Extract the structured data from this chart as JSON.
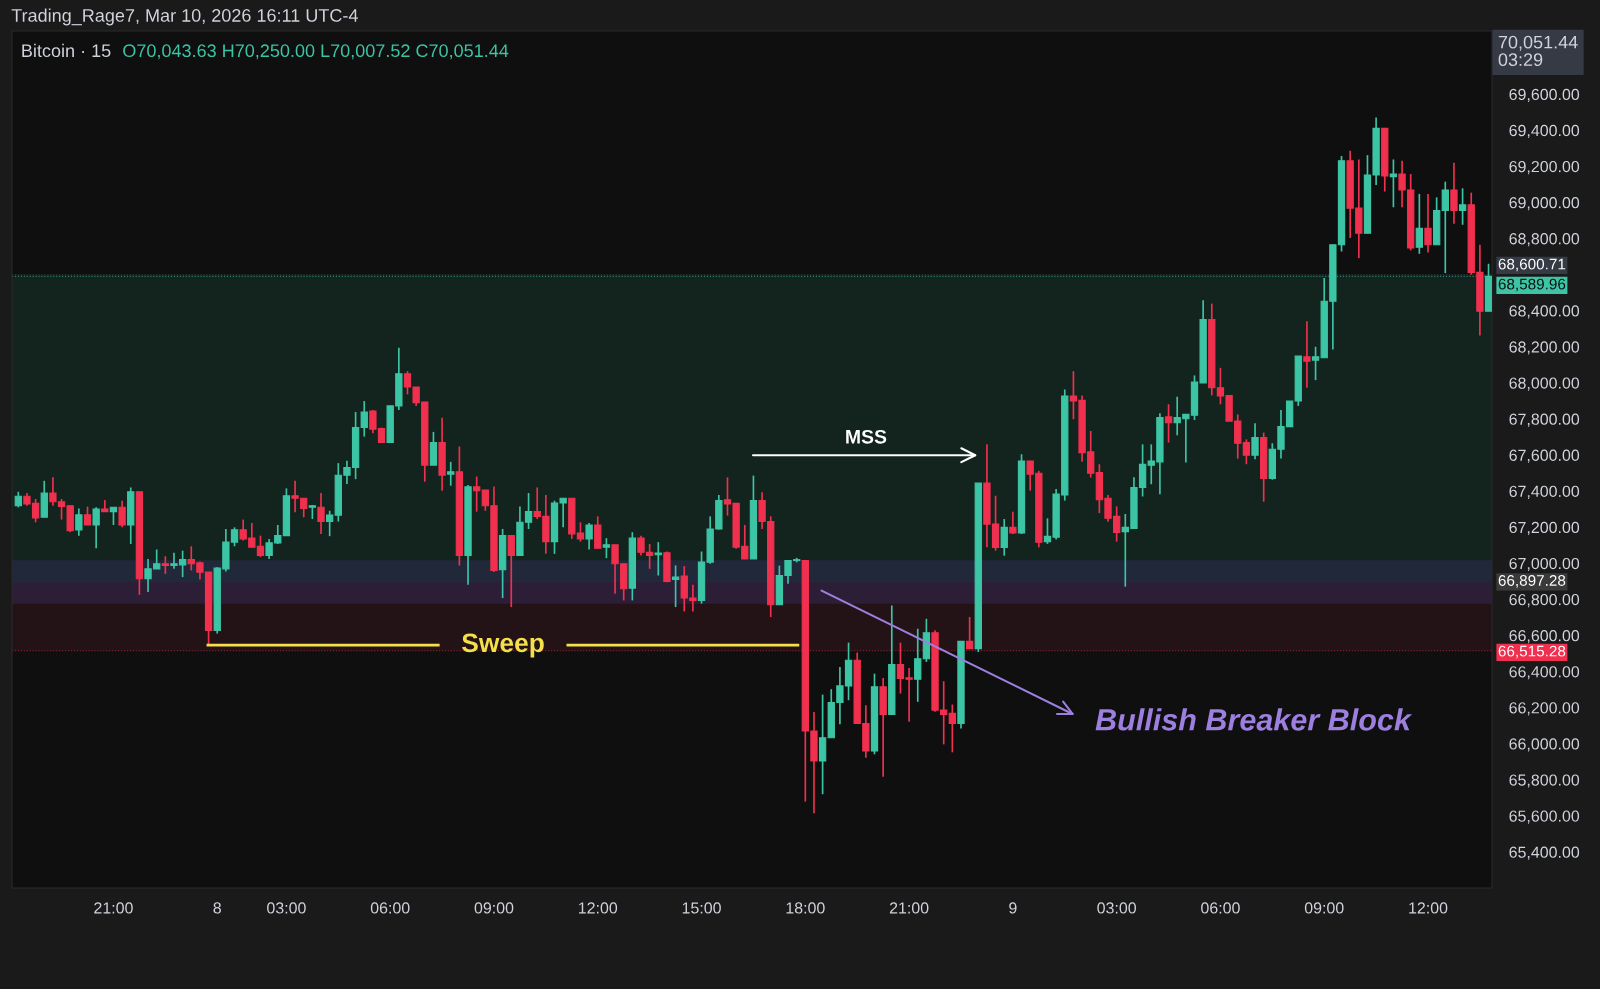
{
  "chart_data": {
    "type": "candlestick",
    "title": "Bitcoin · 15",
    "annotations": [
      "Trading_Rage7, Mar 10, 2026 16:11 UTC-4",
      "O70,043.63 H70,250.00 L70,007.52 C70,051.44",
      "70,051.44\n03:29",
      "MSS",
      "Bullish Breaker Block"
    ],
    "categories": [
      null,
      null,
      null,
      null,
      null,
      null,
      null,
      null,
      null,
      null,
      null,
      "21:00",
      null,
      null,
      null,
      null,
      null,
      null,
      null,
      null,
      null,
      null,
      null,
      "8",
      null,
      null,
      null,
      null,
      null,
      null,
      null,
      "03:00",
      null,
      null,
      null,
      null,
      null,
      null,
      null,
      null,
      null,
      null,
      null,
      "06:00",
      null,
      null,
      null,
      null,
      null,
      null,
      null,
      null,
      null,
      null,
      null,
      "09:00",
      null,
      null,
      null,
      null,
      null,
      null,
      null,
      null,
      null,
      null,
      null,
      "12:00",
      null,
      null,
      null,
      null,
      null,
      null,
      null,
      null,
      null,
      null,
      null,
      "15:00",
      null,
      null,
      null,
      null,
      null,
      null,
      null,
      null,
      null,
      null,
      null,
      "18:00",
      null,
      null,
      null,
      null,
      null,
      null,
      null,
      null,
      null,
      null,
      null,
      "21:00",
      null,
      null,
      null,
      null,
      null,
      null,
      null,
      null,
      null,
      null,
      null,
      "9",
      null,
      null,
      null,
      null,
      null,
      null,
      null,
      null,
      null,
      null,
      null,
      "03:00",
      null,
      null,
      null,
      null,
      null,
      null,
      null,
      null,
      null,
      null,
      null,
      "06:00",
      null,
      null,
      null,
      null,
      null,
      null,
      null,
      null,
      null,
      null,
      null,
      "09:00",
      null,
      null,
      null,
      null,
      null,
      null,
      null,
      null,
      null,
      null,
      null,
      "12:00",
      null,
      null,
      null,
      null,
      null,
      null,
      null
    ],
    "ohlc": [
      [
        67319,
        67396,
        67310,
        67371
      ],
      [
        67371,
        67389,
        67319,
        67328
      ],
      [
        67332,
        67356,
        67227,
        67251
      ],
      [
        67255,
        67457,
        67255,
        67389
      ],
      [
        67389,
        67476,
        67319,
        67341
      ],
      [
        67341,
        67356,
        67242,
        67315
      ],
      [
        67319,
        67319,
        67172,
        67181
      ],
      [
        67185,
        67304,
        67153,
        67268
      ],
      [
        67268,
        67314,
        67212,
        67212
      ],
      [
        67212,
        67310,
        67083,
        67301
      ],
      [
        67301,
        67350,
        67286,
        67286
      ],
      [
        67286,
        67310,
        67212,
        67310
      ],
      [
        67310,
        67347,
        67199,
        67212
      ],
      [
        67212,
        67420,
        67107,
        67396
      ],
      [
        67396,
        67396,
        66825,
        66914
      ],
      [
        66914,
        67024,
        66840,
        66969
      ],
      [
        66969,
        67076,
        66969,
        66997
      ],
      [
        66997,
        67039,
        66941,
        66988
      ],
      [
        66988,
        67058,
        66969,
        66997
      ],
      [
        66991,
        67070,
        66923,
        67021
      ],
      [
        67021,
        67094,
        66960,
        66997
      ],
      [
        67002,
        67010,
        66910,
        66951
      ],
      [
        66951,
        66951,
        66546,
        66628
      ],
      [
        66628,
        66978,
        66610,
        66973
      ],
      [
        66969,
        67190,
        66954,
        67117
      ],
      [
        67117,
        67199,
        67094,
        67185
      ],
      [
        67185,
        67242,
        67126,
        67135
      ],
      [
        67140,
        67223,
        67089,
        67089
      ],
      [
        67094,
        67153,
        67034,
        67043
      ],
      [
        67043,
        67135,
        67024,
        67113
      ],
      [
        67113,
        67212,
        67107,
        67153
      ],
      [
        67153,
        67415,
        67153,
        67374
      ],
      [
        67374,
        67457,
        67282,
        67360
      ],
      [
        67360,
        67360,
        67255,
        67304
      ],
      [
        67310,
        67323,
        67245,
        67319
      ],
      [
        67310,
        67389,
        67162,
        67231
      ],
      [
        67231,
        67291,
        67150,
        67267
      ],
      [
        67267,
        67555,
        67231,
        67488
      ],
      [
        67488,
        67568,
        67439,
        67531
      ],
      [
        67531,
        67838,
        67466,
        67752
      ],
      [
        67752,
        67899,
        67702,
        67838
      ],
      [
        67844,
        67849,
        67721,
        67743
      ],
      [
        67746,
        67752,
        67669,
        67669
      ],
      [
        67669,
        67872,
        67669,
        67872
      ],
      [
        67872,
        68194,
        67850,
        68050
      ],
      [
        68050,
        68065,
        67936,
        67977
      ],
      [
        67977,
        67977,
        67872,
        67890
      ],
      [
        67894,
        67894,
        67452,
        67544
      ],
      [
        67544,
        67728,
        67544,
        67669
      ],
      [
        67669,
        67807,
        67402,
        67488
      ],
      [
        67494,
        67562,
        67430,
        67507
      ],
      [
        67507,
        67647,
        66987,
        67043
      ],
      [
        67043,
        67433,
        66881,
        67424
      ],
      [
        67424,
        67481,
        67286,
        67402
      ],
      [
        67406,
        67406,
        67291,
        67319
      ],
      [
        67319,
        67426,
        66951,
        66960
      ],
      [
        66964,
        67190,
        66807,
        67153
      ],
      [
        67153,
        67153,
        66757,
        67043
      ],
      [
        67043,
        67315,
        67043,
        67227
      ],
      [
        67227,
        67389,
        67190,
        67286
      ],
      [
        67286,
        67420,
        67245,
        67260
      ],
      [
        67260,
        67378,
        67052,
        67120
      ],
      [
        67120,
        67347,
        67052,
        67334
      ],
      [
        67334,
        67360,
        67199,
        67360
      ],
      [
        67360,
        67360,
        67135,
        67163
      ],
      [
        67168,
        67227,
        67120,
        67135
      ],
      [
        67135,
        67223,
        67076,
        67212
      ],
      [
        67212,
        67260,
        67083,
        67083
      ],
      [
        67089,
        67139,
        67028,
        67102
      ],
      [
        67102,
        67102,
        66831,
        66997
      ],
      [
        66997,
        66997,
        66794,
        66859
      ],
      [
        66862,
        67172,
        66794,
        67140
      ],
      [
        67140,
        67153,
        67043,
        67061
      ],
      [
        67061,
        67107,
        66969,
        67043
      ],
      [
        67047,
        67117,
        66932,
        67056
      ],
      [
        67058,
        67065,
        66895,
        66899
      ],
      [
        66910,
        66988,
        66757,
        66923
      ],
      [
        66929,
        66984,
        66733,
        66807
      ],
      [
        66807,
        66881,
        66733,
        66794
      ],
      [
        66794,
        67065,
        66776,
        67006
      ],
      [
        67006,
        67260,
        66997,
        67190
      ],
      [
        67190,
        67378,
        67187,
        67347
      ],
      [
        67352,
        67476,
        67264,
        67328
      ],
      [
        67332,
        67332,
        67080,
        67089
      ],
      [
        67094,
        67212,
        67024,
        67024
      ],
      [
        67024,
        67486,
        67024,
        67347
      ],
      [
        67347,
        67393,
        67190,
        67231
      ],
      [
        67231,
        67260,
        66702,
        66770
      ],
      [
        66770,
        66987,
        66770,
        66932
      ],
      [
        66932,
        67015,
        66886,
        67015
      ],
      [
        67015,
        67030,
        67005,
        67020
      ],
      [
        67015,
        67015,
        65679,
        66070
      ],
      [
        66070,
        66176,
        65615,
        65904
      ],
      [
        65904,
        66272,
        65720,
        66033
      ],
      [
        66033,
        66302,
        66033,
        66228
      ],
      [
        66228,
        66425,
        66107,
        66320
      ],
      [
        66320,
        66560,
        66241,
        66462
      ],
      [
        66462,
        66505,
        66112,
        66112
      ],
      [
        66112,
        66213,
        65922,
        65959
      ],
      [
        65959,
        66388,
        65941,
        66315
      ],
      [
        66315,
        66364,
        65817,
        66162
      ],
      [
        66162,
        66766,
        66162,
        66438
      ],
      [
        66438,
        66560,
        66278,
        66361
      ],
      [
        66365,
        66420,
        66121,
        66357
      ],
      [
        66357,
        66637,
        66232,
        66471
      ],
      [
        66471,
        66692,
        66453,
        66615
      ],
      [
        66615,
        66628,
        66177,
        66186
      ],
      [
        66186,
        66346,
        65996,
        66162
      ],
      [
        66168,
        66217,
        65952,
        66112
      ],
      [
        66112,
        66567,
        66084,
        66567
      ],
      [
        66567,
        66702,
        66527,
        66527
      ],
      [
        66527,
        67444,
        66508,
        67444
      ],
      [
        67444,
        67659,
        67088,
        67217
      ],
      [
        67217,
        67374,
        67070,
        67088
      ],
      [
        67088,
        67245,
        67042,
        67199
      ],
      [
        67199,
        67286,
        67162,
        67168
      ],
      [
        67168,
        67604,
        67162,
        67567
      ],
      [
        67567,
        67567,
        67402,
        67494
      ],
      [
        67499,
        67512,
        67088,
        67116
      ],
      [
        67120,
        67249,
        67107,
        67149
      ],
      [
        67144,
        67411,
        67131,
        67383
      ],
      [
        67378,
        67963,
        67347,
        67927
      ],
      [
        67927,
        68065,
        67798,
        67899
      ],
      [
        67903,
        67930,
        67562,
        67613
      ],
      [
        67617,
        67733,
        67475,
        67499
      ],
      [
        67503,
        67549,
        67278,
        67352
      ],
      [
        67360,
        67378,
        67230,
        67249
      ],
      [
        67260,
        67315,
        67120,
        67171
      ],
      [
        67175,
        67273,
        66870,
        67199
      ],
      [
        67193,
        67476,
        67193,
        67420
      ],
      [
        67420,
        67659,
        67370,
        67549
      ],
      [
        67543,
        67659,
        67438,
        67567
      ],
      [
        67562,
        67831,
        67383,
        67807
      ],
      [
        67811,
        67881,
        67669,
        67779
      ],
      [
        67779,
        67923,
        67709,
        67807
      ],
      [
        67801,
        67825,
        67558,
        67825
      ],
      [
        67820,
        68041,
        67794,
        68004
      ],
      [
        68000,
        68457,
        68000,
        68350
      ],
      [
        68350,
        68439,
        67930,
        67973
      ],
      [
        67973,
        68083,
        67881,
        67927
      ],
      [
        67930,
        67930,
        67788,
        67788
      ],
      [
        67788,
        67825,
        67580,
        67665
      ],
      [
        67669,
        67687,
        67549,
        67599
      ],
      [
        67599,
        67776,
        67577,
        67697
      ],
      [
        67697,
        67724,
        67341,
        67470
      ],
      [
        67470,
        67665,
        67463,
        67632
      ],
      [
        67632,
        67850,
        67581,
        67757
      ],
      [
        67757,
        67899,
        67757,
        67899
      ],
      [
        67899,
        68148,
        67872,
        68148
      ],
      [
        68144,
        68341,
        67973,
        68120
      ],
      [
        68126,
        68200,
        68015,
        68144
      ],
      [
        68139,
        68581,
        68139,
        68452
      ],
      [
        68452,
        68765,
        68185,
        68765
      ],
      [
        68765,
        69257,
        68728,
        69231
      ],
      [
        69231,
        69286,
        68802,
        68968
      ],
      [
        68968,
        69238,
        68691,
        68829
      ],
      [
        68829,
        69262,
        68829,
        69152
      ],
      [
        69152,
        69470,
        69097,
        69410
      ],
      [
        69410,
        69410,
        69060,
        69146
      ],
      [
        69143,
        69238,
        68973,
        69157
      ],
      [
        69157,
        69231,
        68973,
        69069
      ],
      [
        69069,
        69157,
        68734,
        68747
      ],
      [
        68752,
        69047,
        68715,
        68857
      ],
      [
        68857,
        69047,
        68723,
        68765
      ],
      [
        68765,
        69028,
        68765,
        68955
      ],
      [
        68955,
        69115,
        68608,
        69069
      ],
      [
        69069,
        69220,
        68881,
        68955
      ],
      [
        68955,
        69078,
        68876,
        68986
      ],
      [
        68986,
        69054,
        68599,
        68612
      ],
      [
        68612,
        68765,
        68262,
        68397
      ],
      [
        68397,
        68660,
        68397,
        68590
      ]
    ],
    "colors": [
      "#3cc5a5",
      "#f0304e",
      "#f0304e",
      "#3cc5a5",
      "#f0304e",
      "#f0304e",
      "#f0304e",
      "#3cc5a5",
      "#f0304e",
      "#3cc5a5",
      "#f0304e",
      "#3cc5a5",
      "#f0304e",
      "#3cc5a5",
      "#f0304e",
      "#3cc5a5",
      "#3cc5a5",
      "#f0304e",
      "#3cc5a5",
      "#3cc5a5",
      "#f0304e",
      "#f0304e",
      "#f0304e",
      "#3cc5a5",
      "#3cc5a5",
      "#3cc5a5",
      "#f0304e",
      "#f0304e",
      "#f0304e",
      "#3cc5a5",
      "#3cc5a5",
      "#3cc5a5",
      "#f0304e",
      "#f0304e",
      "#3cc5a5",
      "#f0304e",
      "#3cc5a5",
      "#3cc5a5",
      "#3cc5a5",
      "#3cc5a5",
      "#3cc5a5",
      "#f0304e",
      "#f0304e",
      "#3cc5a5",
      "#3cc5a5",
      "#f0304e",
      "#f0304e",
      "#f0304e",
      "#3cc5a5",
      "#f0304e",
      "#3cc5a5",
      "#f0304e",
      "#3cc5a5",
      "#f0304e",
      "#f0304e",
      "#f0304e",
      "#3cc5a5",
      "#f0304e",
      "#3cc5a5",
      "#3cc5a5",
      "#f0304e",
      "#f0304e",
      "#3cc5a5",
      "#3cc5a5",
      "#f0304e",
      "#f0304e",
      "#3cc5a5",
      "#f0304e",
      "#3cc5a5",
      "#f0304e",
      "#f0304e",
      "#3cc5a5",
      "#f0304e",
      "#f0304e",
      "#3cc5a5",
      "#f0304e",
      "#3cc5a5",
      "#f0304e",
      "#f0304e",
      "#3cc5a5",
      "#3cc5a5",
      "#3cc5a5",
      "#f0304e",
      "#f0304e",
      "#f0304e",
      "#3cc5a5",
      "#f0304e",
      "#f0304e",
      "#3cc5a5",
      "#3cc5a5",
      "#3cc5a5",
      "#f0304e",
      "#f0304e",
      "#3cc5a5",
      "#3cc5a5",
      "#3cc5a5",
      "#3cc5a5",
      "#f0304e",
      "#f0304e",
      "#3cc5a5",
      "#f0304e",
      "#3cc5a5",
      "#f0304e",
      "#f0304e",
      "#3cc5a5",
      "#3cc5a5",
      "#f0304e",
      "#f0304e",
      "#f0304e",
      "#3cc5a5",
      "#f0304e",
      "#3cc5a5",
      "#f0304e",
      "#f0304e",
      "#3cc5a5",
      "#f0304e",
      "#3cc5a5",
      "#f0304e",
      "#f0304e",
      "#3cc5a5",
      "#3cc5a5",
      "#3cc5a5",
      "#f0304e",
      "#f0304e",
      "#f0304e",
      "#f0304e",
      "#f0304e",
      "#f0304e",
      "#3cc5a5",
      "#3cc5a5",
      "#3cc5a5",
      "#3cc5a5",
      "#3cc5a5",
      "#f0304e",
      "#3cc5a5",
      "#3cc5a5",
      "#3cc5a5",
      "#3cc5a5",
      "#f0304e",
      "#f0304e",
      "#f0304e",
      "#f0304e",
      "#f0304e",
      "#3cc5a5",
      "#f0304e",
      "#3cc5a5",
      "#3cc5a5",
      "#3cc5a5",
      "#3cc5a5",
      "#f0304e",
      "#3cc5a5",
      "#3cc5a5",
      "#3cc5a5",
      "#3cc5a5",
      "#f0304e",
      "#f0304e",
      "#3cc5a5",
      "#3cc5a5",
      "#f0304e",
      "#3cc5a5",
      "#f0304e",
      "#f0304e",
      "#3cc5a5",
      "#f0304e",
      "#3cc5a5",
      "#3cc5a5",
      "#f0304e",
      "#3cc5a5",
      "#f0304e",
      "#f0304e",
      "#3cc5a5"
    ],
    "ylim": [
      65200,
      69950
    ],
    "yticks": [
      {
        "value": 65400,
        "label": "65,400.00"
      },
      {
        "value": 65600,
        "label": "65,600.00"
      },
      {
        "value": 65800,
        "label": "65,800.00"
      },
      {
        "value": 66000,
        "label": "66,000.00"
      },
      {
        "value": 66200,
        "label": "66,200.00"
      },
      {
        "value": 66400,
        "label": "66,400.00"
      },
      {
        "value": 66600,
        "label": "66,600.00"
      },
      {
        "value": 66800,
        "label": "66,800.00"
      },
      {
        "value": 67000,
        "label": "67,000.00"
      },
      {
        "value": 67200,
        "label": "67,200.00"
      },
      {
        "value": 67400,
        "label": "67,400.00"
      },
      {
        "value": 67600,
        "label": "67,600.00"
      },
      {
        "value": 67800,
        "label": "67,800.00"
      },
      {
        "value": 68000,
        "label": "68,000.00"
      },
      {
        "value": 68200,
        "label": "68,200.00"
      },
      {
        "value": 68400,
        "label": "68,400.00"
      },
      {
        "value": 68800,
        "label": "68,800.00"
      },
      {
        "value": 69000,
        "label": "69,000.00"
      },
      {
        "value": 69200,
        "label": "69,200.00"
      },
      {
        "value": 69400,
        "label": "69,400.00"
      },
      {
        "value": 69600,
        "label": "69,600.00"
      }
    ],
    "bands": [
      {
        "axis": "y",
        "from": 66897.28,
        "to": 68600.71,
        "color": "#1e4a3a"
      },
      {
        "axis": "y",
        "from": 66515.28,
        "to": 66897.28,
        "color": "#4a1e24"
      },
      {
        "axis": "y",
        "from": 66776,
        "to": 67017,
        "color": "#3b3572"
      }
    ],
    "ref_lines": [
      {
        "axis": "y",
        "value": 66546,
        "label": "Sweep",
        "color": "#f5e04a",
        "line_style": "solid"
      },
      {
        "axis": "y",
        "value": 68600.71,
        "label": "68,600.71",
        "color": "#363a45",
        "line_style": "dotted"
      },
      {
        "axis": "y",
        "value": 68589.96,
        "label": "68,589.96",
        "color": "#3cc5a5",
        "line_style": "dotted"
      },
      {
        "axis": "y",
        "value": 66897.28,
        "label": "66,897.28",
        "color": "#3a3a3a",
        "line_style": "dotted"
      },
      {
        "axis": "y",
        "value": 66515.28,
        "label": "66,515.28",
        "color": "#f0304e",
        "line_style": "dotted"
      }
    ]
  }
}
